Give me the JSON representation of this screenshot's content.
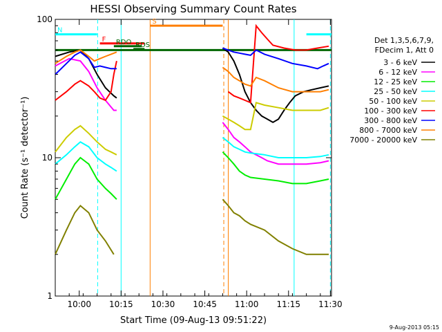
{
  "chart_data": {
    "type": "line",
    "title": "HESSI Observing Summary Count Rates",
    "xlabel": "Start Time (09-Aug-13 09:51:22)",
    "ylabel": "Count Rate (s⁻¹ detector⁻¹)",
    "yscale": "log",
    "ylim": [
      1,
      100
    ],
    "xlim_minutes_from_start": [
      0,
      99
    ],
    "x_ticks": [
      {
        "label": "10:00",
        "t": 8.6
      },
      {
        "label": "10:15",
        "t": 23.6
      },
      {
        "label": "10:30",
        "t": 38.6
      },
      {
        "label": "10:45",
        "t": 53.6
      },
      {
        "label": "11:00",
        "t": 68.6
      },
      {
        "label": "11:15",
        "t": 83.6
      },
      {
        "label": "11:30",
        "t": 98.6
      }
    ],
    "y_ticks": [
      {
        "label": "1",
        "v": 1
      },
      {
        "label": "10",
        "v": 10
      },
      {
        "label": "100",
        "v": 100
      }
    ],
    "legend": {
      "placement": "right",
      "header": [
        "Det 1,3,5,6,7,9,",
        "FDecim 1, Att 0"
      ],
      "entries": [
        {
          "label": "3 - 6 keV",
          "color": "#000000"
        },
        {
          "label": "6 - 12 keV",
          "color": "#ff00ff"
        },
        {
          "label": "12 - 25 keV",
          "color": "#00ee00"
        },
        {
          "label": "25 - 50 keV",
          "color": "#00ffff"
        },
        {
          "label": "50 - 100 keV",
          "color": "#cccc00"
        },
        {
          "label": "100 - 300 keV",
          "color": "#ff0000"
        },
        {
          "label": "300 - 800 keV",
          "color": "#0000ff"
        },
        {
          "label": "800 - 7000 keV",
          "color": "#ff7f00"
        },
        {
          "label": "7000 - 20000 keV",
          "color": "#808000"
        }
      ]
    },
    "series": [
      {
        "name": "3 - 6 keV",
        "color": "#000000",
        "segments": [
          [
            [
              0,
              54
            ],
            [
              5,
              58
            ],
            [
              9,
              60
            ],
            [
              12,
              52
            ],
            [
              15,
              40
            ],
            [
              18,
              32
            ],
            [
              21,
              28
            ],
            [
              22,
              27
            ]
          ],
          [
            [
              60,
              62
            ],
            [
              62,
              58
            ],
            [
              64,
              50
            ],
            [
              66,
              40
            ],
            [
              68,
              30
            ],
            [
              70,
              25
            ],
            [
              72,
              22
            ],
            [
              74,
              20
            ],
            [
              76,
              19
            ],
            [
              78,
              18
            ],
            [
              80,
              19
            ],
            [
              82,
              22
            ],
            [
              84,
              25
            ],
            [
              86,
              28
            ],
            [
              89,
              30
            ],
            [
              92,
              31
            ],
            [
              95,
              32
            ],
            [
              98,
              33
            ]
          ]
        ]
      },
      {
        "name": "6 - 12 keV",
        "color": "#ff00ff",
        "segments": [
          [
            [
              0,
              46
            ],
            [
              5,
              52
            ],
            [
              9,
              50
            ],
            [
              12,
              42
            ],
            [
              15,
              32
            ],
            [
              18,
              26
            ],
            [
              21,
              22
            ],
            [
              22,
              22
            ]
          ],
          [
            [
              60,
              18
            ],
            [
              62,
              16
            ],
            [
              64,
              14
            ],
            [
              66,
              13
            ],
            [
              68,
              12
            ],
            [
              70,
              11
            ],
            [
              72,
              10.5
            ],
            [
              74,
              10
            ],
            [
              76,
              9.5
            ],
            [
              80,
              9
            ],
            [
              85,
              9
            ],
            [
              90,
              9
            ],
            [
              95,
              9.2
            ],
            [
              98,
              9.5
            ]
          ]
        ]
      },
      {
        "name": "12 - 25 keV",
        "color": "#00ee00",
        "segments": [
          [
            [
              0,
              5
            ],
            [
              4,
              7
            ],
            [
              7,
              9
            ],
            [
              9,
              10
            ],
            [
              12,
              9
            ],
            [
              15,
              7
            ],
            [
              18,
              6
            ],
            [
              20,
              5.5
            ],
            [
              22,
              5
            ]
          ],
          [
            [
              60,
              11
            ],
            [
              62,
              10
            ],
            [
              64,
              9
            ],
            [
              66,
              8
            ],
            [
              68,
              7.5
            ],
            [
              70,
              7.2
            ],
            [
              75,
              7
            ],
            [
              80,
              6.8
            ],
            [
              85,
              6.5
            ],
            [
              90,
              6.5
            ],
            [
              95,
              6.8
            ],
            [
              98,
              7
            ]
          ]
        ]
      },
      {
        "name": "25 - 50 keV",
        "color": "#00ffff",
        "segments": [
          [
            [
              0,
              9
            ],
            [
              4,
              10.5
            ],
            [
              7,
              12
            ],
            [
              9,
              13
            ],
            [
              12,
              12
            ],
            [
              15,
              10
            ],
            [
              18,
              9
            ],
            [
              20,
              8.5
            ],
            [
              22,
              8
            ]
          ],
          [
            [
              60,
              14
            ],
            [
              62,
              13
            ],
            [
              64,
              12
            ],
            [
              66,
              11.5
            ],
            [
              68,
              11
            ],
            [
              70,
              10.8
            ],
            [
              75,
              10.5
            ],
            [
              80,
              10
            ],
            [
              85,
              10
            ],
            [
              90,
              10
            ],
            [
              95,
              10.2
            ],
            [
              98,
              10.5
            ]
          ]
        ]
      },
      {
        "name": "50 - 100 keV",
        "color": "#cccc00",
        "segments": [
          [
            [
              0,
              11
            ],
            [
              4,
              14
            ],
            [
              7,
              16
            ],
            [
              9,
              17
            ],
            [
              12,
              15
            ],
            [
              15,
              13
            ],
            [
              18,
              11.5
            ],
            [
              20,
              11
            ],
            [
              22,
              10.5
            ]
          ],
          [
            [
              60,
              20
            ],
            [
              62,
              19
            ],
            [
              64,
              18
            ],
            [
              66,
              17
            ],
            [
              68,
              16
            ],
            [
              70,
              16
            ],
            [
              72,
              25
            ],
            [
              75,
              24
            ],
            [
              80,
              23
            ],
            [
              85,
              22
            ],
            [
              90,
              22
            ],
            [
              95,
              22
            ],
            [
              98,
              23
            ]
          ]
        ]
      },
      {
        "name": "100 - 300 keV",
        "color": "#ff0000",
        "segments": [
          [
            [
              0,
              26
            ],
            [
              4,
              30
            ],
            [
              7,
              34
            ],
            [
              9,
              36
            ],
            [
              12,
              33
            ],
            [
              14,
              30
            ],
            [
              16,
              27
            ],
            [
              18,
              26
            ],
            [
              20,
              30
            ],
            [
              21,
              40
            ],
            [
              22,
              50
            ]
          ],
          [
            [
              62,
              30
            ],
            [
              64,
              28
            ],
            [
              66,
              27
            ],
            [
              68,
              26
            ],
            [
              70,
              25
            ],
            [
              72,
              90
            ],
            [
              74,
              80
            ],
            [
              76,
              72
            ],
            [
              78,
              65
            ],
            [
              82,
              62
            ],
            [
              86,
              60
            ],
            [
              90,
              60
            ],
            [
              94,
              62
            ],
            [
              98,
              64
            ]
          ]
        ]
      },
      {
        "name": "300 - 800 keV",
        "color": "#0000ff",
        "segments": [
          [
            [
              0,
              40
            ],
            [
              4,
              48
            ],
            [
              7,
              55
            ],
            [
              9,
              58
            ],
            [
              12,
              52
            ],
            [
              14,
              45
            ],
            [
              16,
              46
            ],
            [
              18,
              45
            ],
            [
              20,
              44
            ],
            [
              22,
              44
            ]
          ],
          [
            [
              60,
              62
            ],
            [
              62,
              60
            ],
            [
              64,
              58
            ],
            [
              66,
              57
            ],
            [
              68,
              56
            ],
            [
              70,
              55
            ],
            [
              72,
              60
            ],
            [
              75,
              56
            ],
            [
              80,
              52
            ],
            [
              85,
              48
            ],
            [
              90,
              46
            ],
            [
              94,
              44
            ],
            [
              96,
              46
            ],
            [
              98,
              48
            ]
          ]
        ]
      },
      {
        "name": "800 - 7000 keV",
        "color": "#ff7f00",
        "segments": [
          [
            [
              0,
              48
            ],
            [
              4,
              54
            ],
            [
              7,
              58
            ],
            [
              9,
              60
            ],
            [
              12,
              54
            ],
            [
              14,
              50
            ],
            [
              16,
              52
            ],
            [
              18,
              54
            ],
            [
              20,
              56
            ],
            [
              22,
              58
            ]
          ],
          [
            [
              60,
              45
            ],
            [
              62,
              42
            ],
            [
              64,
              38
            ],
            [
              66,
              36
            ],
            [
              68,
              34
            ],
            [
              70,
              33
            ],
            [
              72,
              38
            ],
            [
              75,
              36
            ],
            [
              80,
              32
            ],
            [
              85,
              30
            ],
            [
              90,
              30
            ],
            [
              95,
              30
            ],
            [
              98,
              31
            ]
          ]
        ]
      },
      {
        "name": "7000 - 20000 keV",
        "color": "#808000",
        "segments": [
          [
            [
              0,
              2
            ],
            [
              4,
              3
            ],
            [
              7,
              4
            ],
            [
              9,
              4.5
            ],
            [
              12,
              4
            ],
            [
              15,
              3
            ],
            [
              18,
              2.5
            ],
            [
              21,
              2
            ]
          ],
          [
            [
              60,
              5
            ],
            [
              62,
              4.5
            ],
            [
              64,
              4
            ],
            [
              66,
              3.8
            ],
            [
              68,
              3.5
            ],
            [
              70,
              3.3
            ],
            [
              75,
              3
            ],
            [
              80,
              2.5
            ],
            [
              85,
              2.2
            ],
            [
              90,
              2
            ],
            [
              95,
              2
            ],
            [
              98,
              2
            ]
          ]
        ]
      }
    ],
    "flags": [
      {
        "label": "N",
        "color": "#00ffff",
        "value": 78,
        "spans": [
          [
            0,
            15
          ],
          [
            90,
            99
          ]
        ]
      },
      {
        "label": "F",
        "color": "#ff0000",
        "value": 67,
        "spans": [
          [
            16,
            32
          ]
        ]
      },
      {
        "label": "RDO",
        "color": "#006600",
        "value": 64,
        "spans": [
          [
            21,
            31
          ]
        ]
      },
      {
        "label": "RDS",
        "color": "#006600",
        "value": 61,
        "spans": [
          [
            28,
            32
          ]
        ]
      },
      {
        "label": "S",
        "color": "#ff7f00",
        "value": 90,
        "spans": [
          [
            34,
            60
          ]
        ]
      },
      {
        "label": "",
        "color": "#006600",
        "value": 60,
        "spans": [
          [
            0,
            99
          ]
        ]
      }
    ],
    "vlines": [
      {
        "t": 15.2,
        "color": "#00ffff",
        "style": "dashed"
      },
      {
        "t": 23.6,
        "color": "#00ffff",
        "style": "solid"
      },
      {
        "t": 34.0,
        "color": "#ff7f00",
        "style": "solid"
      },
      {
        "t": 60.4,
        "color": "#ff7f00",
        "style": "dashed"
      },
      {
        "t": 62.0,
        "color": "#ff7f00",
        "style": "solid"
      },
      {
        "t": 85.6,
        "color": "#00ffff",
        "style": "solid"
      },
      {
        "t": 98.6,
        "color": "#00ffff",
        "style": "dashed"
      }
    ],
    "timestamp": "9-Aug-2013 05:15"
  }
}
